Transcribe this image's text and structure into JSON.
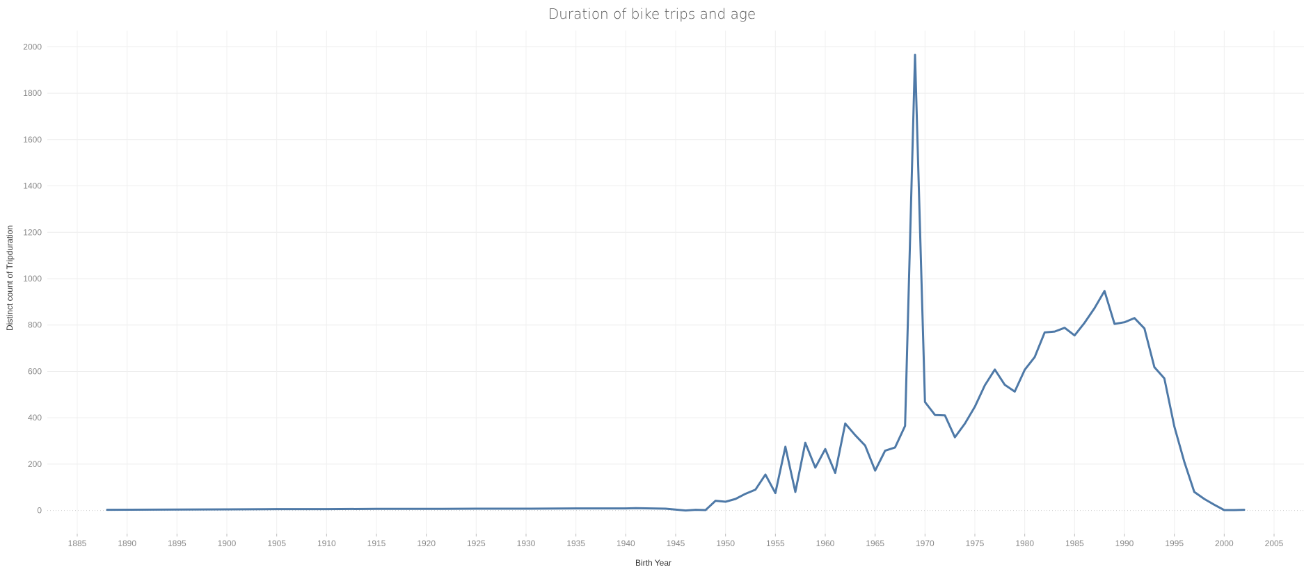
{
  "chart_data": {
    "type": "line",
    "title": "Duration of bike trips and age",
    "xlabel": "Birth Year",
    "ylabel": "Distinct count of Tripduration",
    "xlim": [
      1882,
      2008
    ],
    "ylim": [
      -100,
      2070
    ],
    "grid": true,
    "line_color": "#4e79a7",
    "x_ticks": [
      1885,
      1890,
      1895,
      1900,
      1905,
      1910,
      1915,
      1920,
      1925,
      1930,
      1935,
      1940,
      1945,
      1950,
      1955,
      1960,
      1965,
      1970,
      1975,
      1980,
      1985,
      1990,
      1995,
      2000,
      2005
    ],
    "y_ticks": [
      0,
      200,
      400,
      600,
      800,
      1000,
      1200,
      1400,
      1600,
      1800,
      2000
    ],
    "series": [
      {
        "name": "Distinct count of Tripduration",
        "x": [
          1888,
          1895,
          1900,
          1905,
          1910,
          1915,
          1920,
          1925,
          1930,
          1935,
          1940,
          1941,
          1944,
          1946,
          1947,
          1948,
          1949,
          1950,
          1951,
          1952,
          1953,
          1954,
          1955,
          1956,
          1957,
          1958,
          1959,
          1960,
          1961,
          1962,
          1963,
          1964,
          1965,
          1966,
          1967,
          1968,
          1969,
          1970,
          1971,
          1972,
          1973,
          1974,
          1975,
          1976,
          1977,
          1978,
          1979,
          1980,
          1981,
          1982,
          1983,
          1984,
          1985,
          1986,
          1987,
          1988,
          1989,
          1990,
          1991,
          1992,
          1993,
          1994,
          1995,
          1996,
          1997,
          1998,
          1999,
          2000,
          2001,
          2002
        ],
        "y": [
          3,
          4,
          5,
          6,
          6,
          7,
          7,
          8,
          8,
          9,
          9,
          10,
          8,
          0,
          3,
          2,
          42,
          38,
          50,
          72,
          90,
          155,
          75,
          275,
          80,
          292,
          185,
          265,
          162,
          375,
          325,
          280,
          172,
          258,
          272,
          365,
          1965,
          468,
          412,
          410,
          316,
          375,
          448,
          540,
          608,
          542,
          513,
          607,
          662,
          768,
          772,
          788,
          755,
          810,
          873,
          947,
          805,
          812,
          830,
          785,
          618,
          570,
          362,
          210,
          80,
          50,
          25,
          2,
          2,
          3
        ]
      }
    ]
  }
}
